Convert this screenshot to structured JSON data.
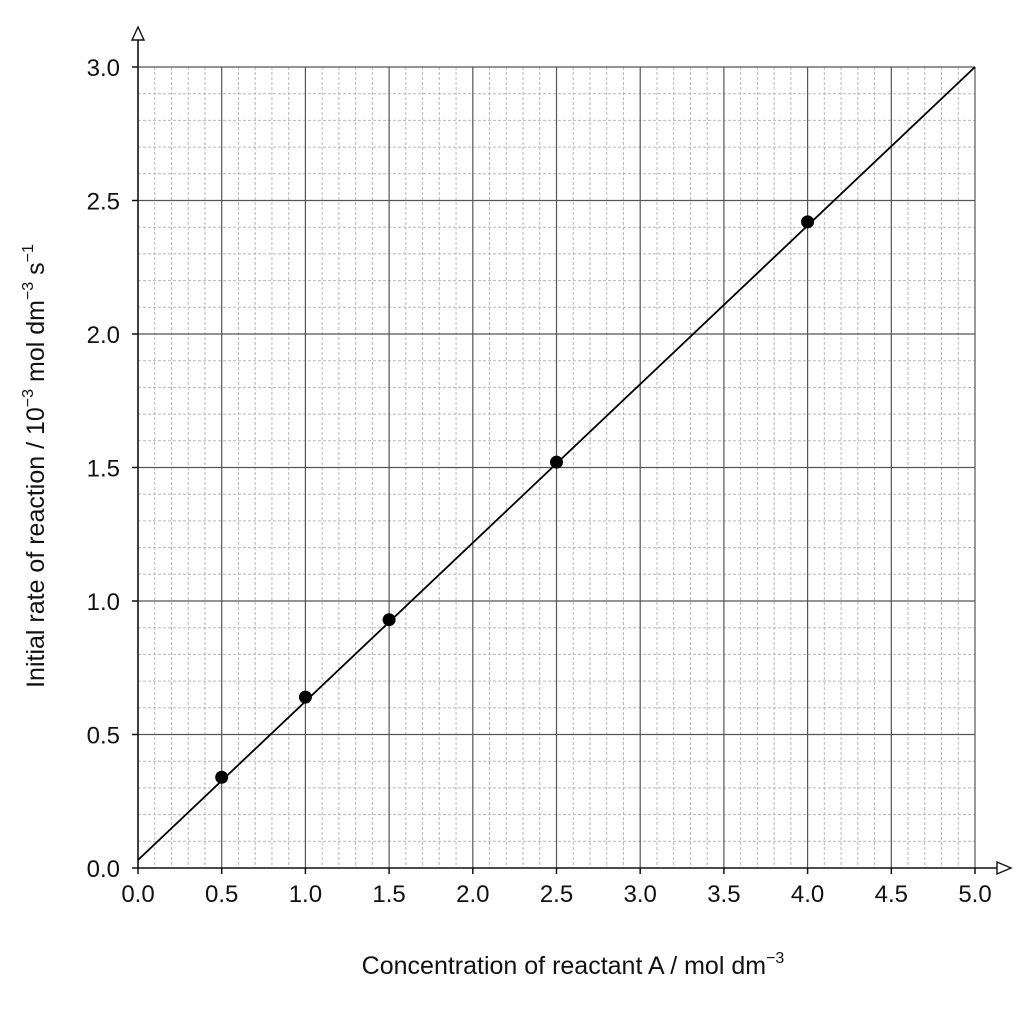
{
  "chart_data": {
    "type": "scatter",
    "title": "",
    "xlabel": {
      "text": "Concentration of reactant A / mol dm",
      "sup": "−3"
    },
    "ylabel": {
      "parts": [
        {
          "text": "Initial rate of reaction / 10",
          "sup": false
        },
        {
          "text": "−3",
          "sup": true
        },
        {
          "text": " mol dm",
          "sup": false
        },
        {
          "text": "−3",
          "sup": true
        },
        {
          "text": " s",
          "sup": false
        },
        {
          "text": "−1",
          "sup": true
        }
      ]
    },
    "xlim": [
      0,
      5
    ],
    "ylim": [
      0,
      3
    ],
    "x_major_step": 0.5,
    "y_major_step": 0.5,
    "x_minor_step": 0.1,
    "y_minor_step": 0.1,
    "x_ticks": [
      "0.0",
      "0.5",
      "1.0",
      "1.5",
      "2.0",
      "2.5",
      "3.0",
      "3.5",
      "4.0",
      "4.5",
      "5.0"
    ],
    "y_ticks": [
      "0.0",
      "0.5",
      "1.0",
      "1.5",
      "2.0",
      "2.5",
      "3.0"
    ],
    "grid": true,
    "series": [
      {
        "points": [
          {
            "x": 0.5,
            "y": 0.34
          },
          {
            "x": 1.0,
            "y": 0.64
          },
          {
            "x": 1.5,
            "y": 0.93
          },
          {
            "x": 2.5,
            "y": 1.52
          },
          {
            "x": 4.0,
            "y": 2.42
          }
        ],
        "color": "#000000"
      }
    ],
    "fit_line": {
      "from": {
        "x": 0.0,
        "y": 0.03
      },
      "to": {
        "x": 5.0,
        "y": 3.0
      },
      "color": "#000000"
    }
  }
}
